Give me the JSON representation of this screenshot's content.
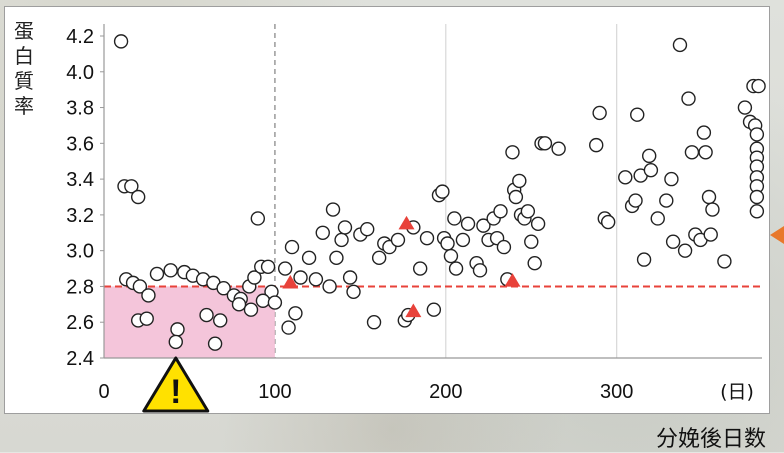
{
  "chart_data": {
    "type": "scatter",
    "title": "",
    "ylabel": "蛋白質率",
    "xlabel": "分娩後日数",
    "x_unit": "(日)",
    "xlim": [
      0,
      385
    ],
    "ylim": [
      2.4,
      4.2
    ],
    "x_ticks": [
      0,
      100,
      200,
      300
    ],
    "y_ticks": [
      2.4,
      2.6,
      2.8,
      3.0,
      3.2,
      3.4,
      3.6,
      3.8,
      4.0,
      4.2
    ],
    "y_tick_labels": [
      "2.4",
      "2.6",
      "2.8",
      "3.0",
      "3.2",
      "3.4",
      "3.6",
      "3.8",
      "4.0",
      "4.2"
    ],
    "threshold_y": 2.8,
    "threshold_color": "#e8423a",
    "highlight_region": {
      "x": [
        0,
        100
      ],
      "y": [
        2.4,
        2.8
      ],
      "color": "#f3bfd6"
    },
    "vertical_divider_x": 100,
    "warning_icon_x": 42,
    "colors": {
      "marker_fill": "#ffffff",
      "marker_stroke": "#222222",
      "triangle": "#e8423a",
      "arrow": "#e8782b",
      "warning": "#ffe100"
    },
    "series": [
      {
        "marker": "circle",
        "points": [
          [
            10,
            4.17
          ],
          [
            12,
            3.36
          ],
          [
            16,
            3.36
          ],
          [
            20,
            3.3
          ],
          [
            13,
            2.84
          ],
          [
            17,
            2.82
          ],
          [
            21,
            2.8
          ],
          [
            26,
            2.75
          ],
          [
            20,
            2.61
          ],
          [
            25,
            2.62
          ],
          [
            31,
            2.87
          ],
          [
            39,
            2.89
          ],
          [
            47,
            2.88
          ],
          [
            52,
            2.86
          ],
          [
            58,
            2.84
          ],
          [
            64,
            2.82
          ],
          [
            70,
            2.79
          ],
          [
            76,
            2.75
          ],
          [
            80,
            2.73
          ],
          [
            85,
            2.8
          ],
          [
            88,
            2.85
          ],
          [
            92,
            2.91
          ],
          [
            96,
            2.91
          ],
          [
            98,
            2.77
          ],
          [
            90,
            3.18
          ],
          [
            43,
            2.56
          ],
          [
            42,
            2.49
          ],
          [
            65,
            2.48
          ],
          [
            60,
            2.64
          ],
          [
            68,
            2.61
          ],
          [
            79,
            2.7
          ],
          [
            86,
            2.67
          ],
          [
            93,
            2.72
          ],
          [
            100,
            2.71
          ],
          [
            106,
            2.9
          ],
          [
            110,
            3.02
          ],
          [
            112,
            2.65
          ],
          [
            108,
            2.57
          ],
          [
            115,
            2.85
          ],
          [
            120,
            2.96
          ],
          [
            124,
            2.84
          ],
          [
            128,
            3.1
          ],
          [
            132,
            2.8
          ],
          [
            134,
            3.23
          ],
          [
            136,
            2.96
          ],
          [
            139,
            3.06
          ],
          [
            141,
            3.13
          ],
          [
            144,
            2.85
          ],
          [
            146,
            2.77
          ],
          [
            150,
            3.09
          ],
          [
            154,
            3.12
          ],
          [
            158,
            2.6
          ],
          [
            161,
            2.96
          ],
          [
            164,
            3.04
          ],
          [
            167,
            3.02
          ],
          [
            172,
            3.06
          ],
          [
            176,
            2.61
          ],
          [
            178,
            2.64
          ],
          [
            181,
            3.13
          ],
          [
            185,
            2.9
          ],
          [
            189,
            3.07
          ],
          [
            193,
            2.67
          ],
          [
            196,
            3.31
          ],
          [
            198,
            3.33
          ],
          [
            199,
            3.07
          ],
          [
            201,
            3.04
          ],
          [
            203,
            2.97
          ],
          [
            205,
            3.18
          ],
          [
            206,
            2.9
          ],
          [
            210,
            3.06
          ],
          [
            213,
            3.15
          ],
          [
            218,
            2.93
          ],
          [
            220,
            2.89
          ],
          [
            222,
            3.14
          ],
          [
            225,
            3.06
          ],
          [
            228,
            3.18
          ],
          [
            230,
            3.07
          ],
          [
            232,
            3.22
          ],
          [
            234,
            3.02
          ],
          [
            236,
            2.84
          ],
          [
            239,
            3.55
          ],
          [
            240,
            3.34
          ],
          [
            241,
            3.3
          ],
          [
            243,
            3.39
          ],
          [
            244,
            3.2
          ],
          [
            246,
            3.18
          ],
          [
            248,
            3.22
          ],
          [
            250,
            3.05
          ],
          [
            252,
            2.93
          ],
          [
            254,
            3.15
          ],
          [
            256,
            3.6
          ],
          [
            258,
            3.6
          ],
          [
            266,
            3.57
          ],
          [
            288,
            3.59
          ],
          [
            290,
            3.77
          ],
          [
            293,
            3.18
          ],
          [
            295,
            3.16
          ],
          [
            305,
            3.41
          ],
          [
            309,
            3.25
          ],
          [
            311,
            3.28
          ],
          [
            312,
            3.76
          ],
          [
            314,
            3.42
          ],
          [
            316,
            2.95
          ],
          [
            319,
            3.53
          ],
          [
            320,
            3.45
          ],
          [
            324,
            3.18
          ],
          [
            329,
            3.28
          ],
          [
            332,
            3.4
          ],
          [
            333,
            3.05
          ],
          [
            337,
            4.15
          ],
          [
            340,
            3.0
          ],
          [
            342,
            3.85
          ],
          [
            344,
            3.55
          ],
          [
            346,
            3.09
          ],
          [
            349,
            3.06
          ],
          [
            351,
            3.66
          ],
          [
            352,
            3.55
          ],
          [
            354,
            3.3
          ],
          [
            355,
            3.09
          ],
          [
            356,
            3.23
          ],
          [
            363,
            2.94
          ],
          [
            375,
            3.8
          ],
          [
            378,
            3.72
          ],
          [
            380,
            3.92
          ],
          [
            381,
            3.7
          ],
          [
            382,
            3.65
          ],
          [
            382,
            3.57
          ],
          [
            382,
            3.52
          ],
          [
            382,
            3.47
          ],
          [
            382,
            3.41
          ],
          [
            382,
            3.36
          ],
          [
            382,
            3.3
          ],
          [
            382,
            3.22
          ],
          [
            383,
            3.92
          ]
        ]
      },
      {
        "marker": "triangle",
        "points": [
          [
            109,
            2.82
          ],
          [
            177,
            3.15
          ],
          [
            181,
            2.66
          ],
          [
            239,
            2.83
          ]
        ]
      }
    ]
  },
  "warning_symbol": "!"
}
